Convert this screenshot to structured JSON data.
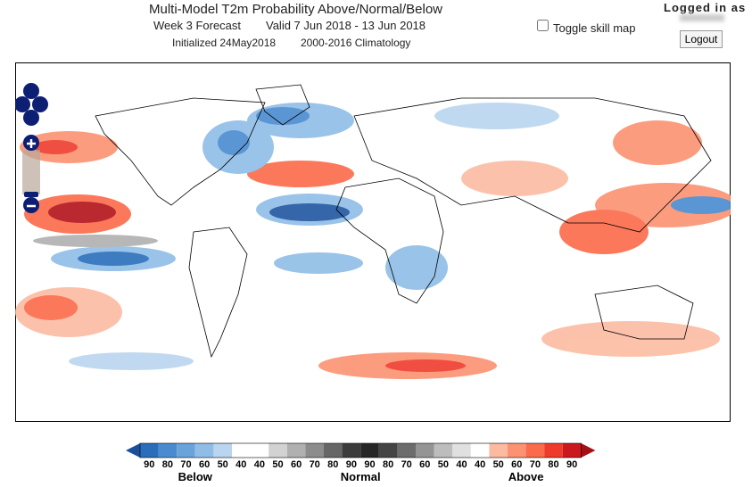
{
  "header": {
    "title": "Multi-Model T2m Probability Above/Normal/Below",
    "line2_a": "Week 3 Forecast",
    "line2_b": "Valid 7 Jun 2018 - 13 Jun 2018",
    "line3_a": "Initialized 24May2018",
    "line3_b": "2000-2016 Climatology"
  },
  "controls": {
    "toggle": "Toggle skill map",
    "logged_in": "Logged in as",
    "logout": "Logout"
  },
  "legend": {
    "labels": [
      90,
      80,
      70,
      60,
      50,
      40,
      40,
      50,
      60,
      70,
      80,
      90,
      90,
      80,
      70,
      60,
      50,
      40,
      40,
      50,
      60,
      70,
      80,
      90
    ],
    "colors": [
      "#2a6ebb",
      "#4a8bd0",
      "#6aa3da",
      "#8fbde6",
      "#b9d5ef",
      "#ffffff",
      "#ffffff",
      "#d2d2d2",
      "#b0b0b0",
      "#8c8c8c",
      "#666666",
      "#3c3c3c",
      "#262626",
      "#444444",
      "#6c6c6c",
      "#949494",
      "#bdbdbd",
      "#e0e0e0",
      "#ffffff",
      "#fcbba1",
      "#fc9272",
      "#fb6a4a",
      "#ef3b2c",
      "#cb181d"
    ],
    "low_color": "#1a4f9a",
    "high_color": "#a50f15",
    "below": "Below",
    "normal": "Normal",
    "above": "Above"
  }
}
